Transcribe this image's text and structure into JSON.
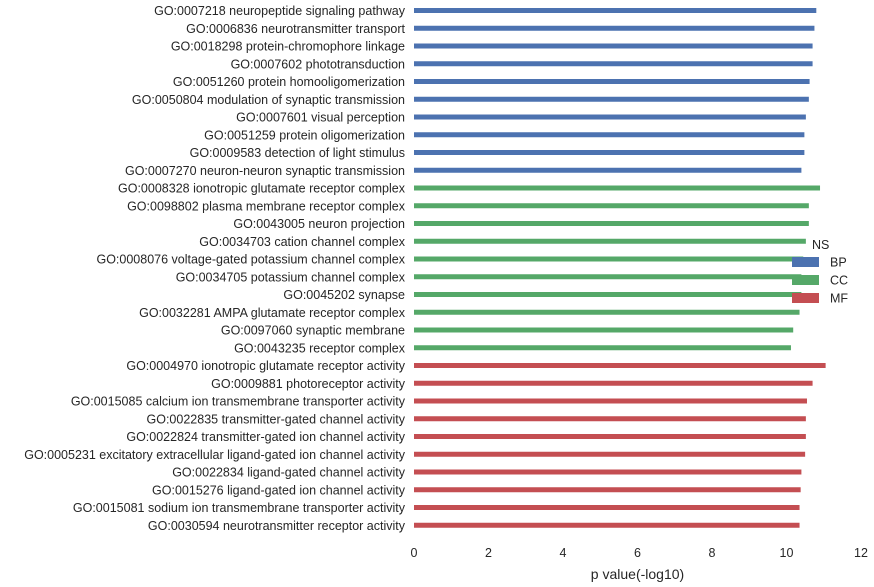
{
  "chart_data": {
    "type": "bar",
    "orientation": "horizontal",
    "title": "",
    "xlabel": "p value(-log10)",
    "ylabel": "",
    "xlim": [
      0,
      12
    ],
    "xticks": [
      0,
      2,
      4,
      6,
      8,
      10,
      12
    ],
    "grid": false,
    "legend": {
      "title": "NS",
      "placement": "right",
      "entries": [
        {
          "name": "BP",
          "color": "#4c72b0"
        },
        {
          "name": "CC",
          "color": "#55a868"
        },
        {
          "name": "MF",
          "color": "#c44e52"
        }
      ]
    },
    "bars": [
      {
        "label": "GO:0007218 neuropeptide signaling pathway",
        "value": 10.8,
        "group": "BP"
      },
      {
        "label": "GO:0006836 neurotransmitter transport",
        "value": 10.75,
        "group": "BP"
      },
      {
        "label": "GO:0018298 protein-chromophore linkage",
        "value": 10.7,
        "group": "BP"
      },
      {
        "label": "GO:0007602 phototransduction",
        "value": 10.7,
        "group": "BP"
      },
      {
        "label": "GO:0051260 protein homooligomerization",
        "value": 10.62,
        "group": "BP"
      },
      {
        "label": "GO:0050804 modulation of synaptic transmission",
        "value": 10.6,
        "group": "BP"
      },
      {
        "label": "GO:0007601 visual perception",
        "value": 10.52,
        "group": "BP"
      },
      {
        "label": "GO:0051259 protein oligomerization",
        "value": 10.48,
        "group": "BP"
      },
      {
        "label": "GO:0009583 detection of light stimulus",
        "value": 10.48,
        "group": "BP"
      },
      {
        "label": "GO:0007270 neuron-neuron synaptic transmission",
        "value": 10.4,
        "group": "BP"
      },
      {
        "label": "GO:0008328 ionotropic glutamate receptor complex",
        "value": 10.9,
        "group": "CC"
      },
      {
        "label": "GO:0098802 plasma membrane receptor complex",
        "value": 10.6,
        "group": "CC"
      },
      {
        "label": "GO:0043005 neuron projection",
        "value": 10.6,
        "group": "CC"
      },
      {
        "label": "GO:0034703 cation channel complex",
        "value": 10.52,
        "group": "CC"
      },
      {
        "label": "GO:0008076 voltage-gated potassium channel complex",
        "value": 10.45,
        "group": "CC"
      },
      {
        "label": "GO:0034705 potassium channel complex",
        "value": 10.4,
        "group": "CC"
      },
      {
        "label": "GO:0045202 synapse",
        "value": 10.4,
        "group": "CC"
      },
      {
        "label": "GO:0032281 AMPA glutamate receptor complex",
        "value": 10.35,
        "group": "CC"
      },
      {
        "label": "GO:0097060 synaptic membrane",
        "value": 10.18,
        "group": "CC"
      },
      {
        "label": "GO:0043235 receptor complex",
        "value": 10.12,
        "group": "CC"
      },
      {
        "label": "GO:0004970 ionotropic glutamate receptor activity",
        "value": 11.05,
        "group": "MF"
      },
      {
        "label": "GO:0009881 photoreceptor activity",
        "value": 10.7,
        "group": "MF"
      },
      {
        "label": "GO:0015085 calcium ion transmembrane transporter activity",
        "value": 10.55,
        "group": "MF"
      },
      {
        "label": "GO:0022835 transmitter-gated channel activity",
        "value": 10.52,
        "group": "MF"
      },
      {
        "label": "GO:0022824 transmitter-gated ion channel activity",
        "value": 10.52,
        "group": "MF"
      },
      {
        "label": "GO:0005231 excitatory extracellular ligand-gated ion channel activity",
        "value": 10.5,
        "group": "MF"
      },
      {
        "label": "GO:0022834 ligand-gated channel activity",
        "value": 10.4,
        "group": "MF"
      },
      {
        "label": "GO:0015276 ligand-gated ion channel activity",
        "value": 10.38,
        "group": "MF"
      },
      {
        "label": "GO:0015081 sodium ion transmembrane transporter activity",
        "value": 10.35,
        "group": "MF"
      },
      {
        "label": "GO:0030594 neurotransmitter receptor activity",
        "value": 10.35,
        "group": "MF"
      }
    ]
  }
}
